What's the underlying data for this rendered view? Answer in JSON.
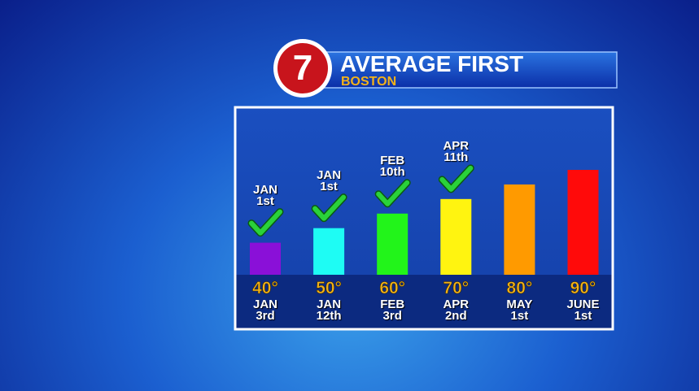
{
  "chart_data": {
    "type": "bar",
    "title": "AVERAGE FIRST",
    "subtitle": "BOSTON",
    "categories": [
      "JAN 3rd",
      "JAN 12th",
      "FEB 3rd",
      "APR 2nd",
      "MAY 1st",
      "JUNE 1st"
    ],
    "values": [
      40,
      50,
      60,
      70,
      80,
      90
    ],
    "value_labels": [
      "40°",
      "50°",
      "60°",
      "70°",
      "80°",
      "90°"
    ],
    "colors": [
      "#8a10d8",
      "#1efcf4",
      "#22f41a",
      "#fff410",
      "#ff9a00",
      "#ff0a0a"
    ],
    "annotations": [
      "JAN 1st",
      "JAN 1st",
      "FEB 10th",
      "APR 11th",
      null,
      null
    ],
    "ylim": [
      18,
      90
    ]
  }
}
